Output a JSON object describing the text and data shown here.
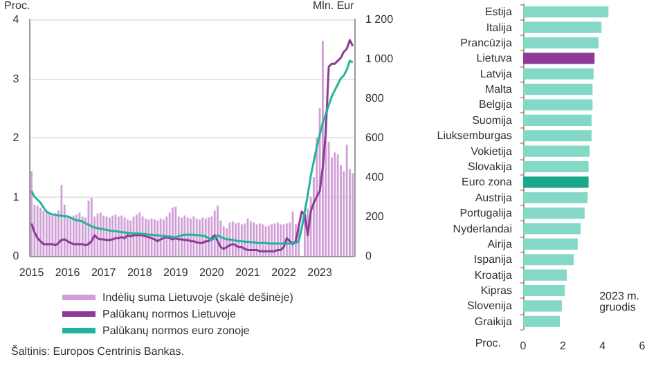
{
  "chart_data": [
    {
      "type": "bar",
      "ylabel": "Proc.",
      "y2label": "Mln. Eur",
      "categories": [
        "2015",
        null,
        null,
        null,
        null,
        null,
        null,
        null,
        null,
        null,
        null,
        null,
        "2016",
        null,
        null,
        null,
        null,
        null,
        null,
        null,
        null,
        null,
        null,
        null,
        "2017",
        null,
        null,
        null,
        null,
        null,
        null,
        null,
        null,
        null,
        null,
        null,
        "2018",
        null,
        null,
        null,
        null,
        null,
        null,
        null,
        null,
        null,
        null,
        null,
        "2019",
        null,
        null,
        null,
        null,
        null,
        null,
        null,
        null,
        null,
        null,
        null,
        "2020",
        null,
        null,
        null,
        null,
        null,
        null,
        null,
        null,
        null,
        null,
        null,
        "2021",
        null,
        null,
        null,
        null,
        null,
        null,
        null,
        null,
        null,
        null,
        null,
        "2022",
        null,
        null,
        null,
        null,
        null,
        null,
        null,
        null,
        null,
        null,
        null,
        "2023",
        null,
        null,
        null,
        null,
        null,
        null,
        null,
        null,
        null,
        null,
        null
      ],
      "series": [
        {
          "name": "Indėlių suma Lietuvoje (skalė dešinėje)",
          "type": "bar",
          "axis": "y2",
          "color": "#cf9fd6",
          "values": [
            430,
            260,
            255,
            245,
            230,
            220,
            215,
            205,
            210,
            230,
            360,
            260,
            200,
            195,
            205,
            210,
            220,
            200,
            195,
            280,
            295,
            200,
            215,
            220,
            205,
            200,
            195,
            205,
            210,
            200,
            205,
            195,
            185,
            180,
            200,
            210,
            220,
            200,
            190,
            185,
            190,
            185,
            180,
            190,
            185,
            200,
            220,
            245,
            250,
            200,
            195,
            205,
            195,
            190,
            200,
            190,
            185,
            195,
            190,
            195,
            200,
            230,
            255,
            180,
            150,
            140,
            170,
            175,
            165,
            170,
            160,
            165,
            190,
            175,
            170,
            160,
            165,
            160,
            150,
            155,
            160,
            165,
            170,
            160,
            160,
            165,
            170,
            225,
            160,
            165,
            null,
            200,
            240,
            300,
            400,
            600,
            750,
            1090,
            680,
            580,
            500,
            525,
            515,
            460,
            430,
            565,
            440,
            420
          ]
        },
        {
          "name": "Palūkanų normos Lietuvoje",
          "type": "line",
          "color": "#8e3a96",
          "values": [
            0.55,
            0.4,
            0.3,
            0.25,
            0.2,
            0.2,
            0.2,
            0.2,
            0.18,
            0.22,
            0.27,
            0.28,
            0.25,
            0.22,
            0.2,
            0.2,
            0.2,
            0.2,
            0.18,
            0.2,
            0.25,
            0.35,
            0.3,
            0.28,
            0.28,
            0.27,
            0.27,
            0.28,
            0.3,
            0.3,
            0.32,
            0.3,
            0.35,
            0.33,
            0.35,
            0.35,
            0.35,
            0.35,
            0.33,
            0.32,
            0.3,
            0.28,
            0.25,
            0.28,
            0.3,
            0.32,
            0.3,
            0.28,
            0.3,
            0.28,
            0.28,
            0.27,
            0.27,
            0.25,
            0.25,
            0.23,
            0.22,
            0.22,
            0.25,
            0.25,
            0.3,
            0.35,
            0.25,
            0.15,
            0.12,
            0.15,
            0.18,
            0.2,
            0.18,
            0.15,
            0.15,
            0.12,
            0.1,
            0.1,
            0.1,
            0.1,
            0.08,
            0.08,
            0.08,
            0.08,
            0.08,
            0.08,
            0.1,
            0.1,
            0.15,
            0.3,
            0.25,
            0.2,
            0.25,
            0.5,
            0.75,
            0.7,
            0.35,
            0.75,
            0.9,
            1.0,
            1.1,
            1.5,
            2.1,
            3.2,
            3.25,
            3.25,
            3.3,
            3.35,
            3.45,
            3.5,
            3.65,
            3.55
          ]
        },
        {
          "name": "Palūkanų normos euro zonoje",
          "type": "line",
          "color": "#1fb59a",
          "values": [
            1.1,
            1.0,
            0.95,
            0.9,
            0.82,
            0.75,
            0.72,
            0.7,
            0.7,
            0.68,
            0.68,
            0.67,
            0.67,
            0.65,
            0.62,
            0.6,
            0.6,
            0.58,
            0.55,
            0.53,
            0.5,
            0.48,
            0.47,
            0.46,
            0.45,
            0.44,
            0.43,
            0.42,
            0.42,
            0.41,
            0.4,
            0.4,
            0.39,
            0.39,
            0.38,
            0.38,
            0.38,
            0.37,
            0.37,
            0.36,
            0.36,
            0.35,
            0.35,
            0.34,
            0.34,
            0.33,
            0.33,
            0.32,
            0.32,
            0.33,
            0.35,
            0.36,
            0.36,
            0.36,
            0.36,
            0.35,
            0.35,
            0.34,
            0.33,
            0.3,
            0.27,
            0.3,
            0.35,
            0.32,
            0.3,
            0.28,
            0.28,
            0.27,
            0.26,
            0.25,
            0.25,
            0.24,
            0.24,
            0.23,
            0.23,
            0.22,
            0.22,
            0.22,
            0.22,
            0.21,
            0.21,
            0.21,
            0.21,
            0.21,
            0.21,
            0.21,
            0.21,
            0.21,
            0.22,
            0.25,
            0.47,
            0.75,
            1.03,
            1.35,
            1.6,
            1.84,
            2.05,
            2.25,
            2.4,
            2.55,
            2.7,
            2.8,
            2.9,
            3.0,
            3.05,
            3.15,
            3.3,
            3.27
          ]
        }
      ],
      "ylim": [
        0,
        4
      ],
      "yticks": [
        0,
        1,
        2,
        3,
        4
      ],
      "y2lim": [
        0,
        1200
      ],
      "y2ticks": [
        0,
        200,
        400,
        600,
        800,
        {
          "value": 1000,
          "label": "1 000"
        },
        {
          "value": 1200,
          "label": "1 200"
        }
      ],
      "grid": "y",
      "legend": "bottom",
      "annotations": [
        "Šaltinis: Europos Centrinis Bankas."
      ]
    },
    {
      "type": "bar",
      "orientation": "horizontal",
      "xlabel": "Proc.",
      "categories": [
        "Estija",
        "Italija",
        "Prancūzija",
        "Lietuva",
        "Latvija",
        "Malta",
        "Belgija",
        "Suomija",
        "Liuksemburgas",
        "Vokietija",
        "Slovakija",
        "Euro zona",
        "Austrija",
        "Portugalija",
        "Nyderlandai",
        "Airija",
        "Ispanija",
        "Kroatija",
        "Kipras",
        "Slovenija",
        "Graikija"
      ],
      "values": [
        4.3,
        3.95,
        3.8,
        3.6,
        3.55,
        3.5,
        3.5,
        3.45,
        3.45,
        3.35,
        3.3,
        3.3,
        3.25,
        3.1,
        2.9,
        2.75,
        2.55,
        2.2,
        2.1,
        1.95,
        1.85
      ],
      "colors": [
        "#84d8c6",
        "#84d8c6",
        "#84d8c6",
        "#8e3a96",
        "#84d8c6",
        "#84d8c6",
        "#84d8c6",
        "#84d8c6",
        "#84d8c6",
        "#84d8c6",
        "#84d8c6",
        "#1aa88a",
        "#84d8c6",
        "#84d8c6",
        "#84d8c6",
        "#84d8c6",
        "#84d8c6",
        "#84d8c6",
        "#84d8c6",
        "#84d8c6",
        "#84d8c6"
      ],
      "xlim": [
        0,
        6
      ],
      "xticks": [
        0,
        2,
        4,
        6
      ],
      "grid": false,
      "annotations": [
        "2023 m.\ngruodis"
      ]
    }
  ]
}
